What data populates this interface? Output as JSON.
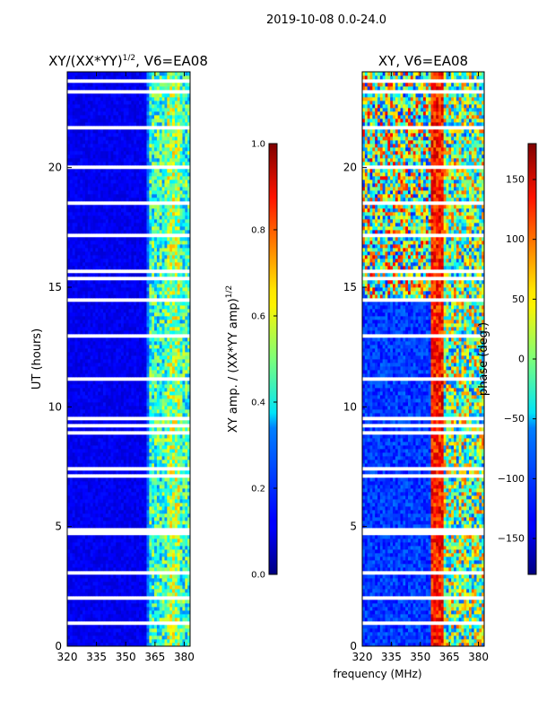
{
  "figure_title": "2019-10-08 0.0-24.0",
  "shared_xlabel": "frequency (MHz)",
  "chart_data": [
    {
      "type": "heatmap",
      "title_main": "XY/(XX*YY)",
      "title_sup": "1/2",
      "title_rest": ", V6=EA08",
      "ylabel": "UT (hours)",
      "xlim": [
        320,
        383
      ],
      "ylim": [
        0,
        24
      ],
      "xticks": [
        320,
        335,
        350,
        365,
        380
      ],
      "yticks": [
        0,
        5,
        10,
        15,
        20
      ],
      "colorbar": {
        "label_main": "XY amp. / (XX*YY amp)",
        "label_sup": "1/2",
        "range": [
          0.0,
          1.0
        ],
        "ticks": [
          "0.0",
          "0.2",
          "0.4",
          "0.6",
          "0.8",
          "1.0"
        ],
        "tick_values": [
          0.0,
          0.2,
          0.4,
          0.6,
          0.8,
          1.0
        ]
      }
    },
    {
      "type": "heatmap",
      "title": "XY, V6=EA08",
      "xlim": [
        320,
        383
      ],
      "ylim": [
        0,
        24
      ],
      "xticks": [
        320,
        335,
        350,
        365,
        380
      ],
      "yticks": [
        0,
        5,
        10,
        15,
        20
      ],
      "colorbar": {
        "label": "phase (deg.)",
        "range": [
          -180,
          180
        ],
        "ticks": [
          "150",
          "100",
          "50",
          "0",
          "−50",
          "−100",
          "−150"
        ],
        "tick_values": [
          150,
          100,
          50,
          0,
          -50,
          -100,
          -150
        ]
      }
    }
  ]
}
